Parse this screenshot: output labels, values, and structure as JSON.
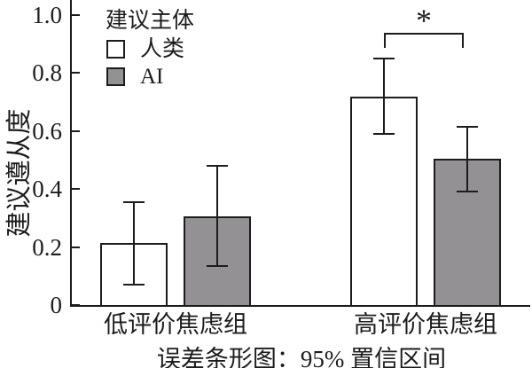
{
  "chart_data": {
    "type": "bar",
    "title": "",
    "ylabel": "建议遵从度",
    "xlabel": "",
    "caption": "误差条形图：95% 置信区间",
    "legend_title": "建议主体",
    "legend_position": "top-left-inside",
    "categories": [
      "低评价焦虑组",
      "高评价焦虑组"
    ],
    "series": [
      {
        "name": "人类",
        "fill": "#ffffff",
        "values": [
          0.215,
          0.72
        ],
        "ci_low": [
          0.07,
          0.59
        ],
        "ci_high": [
          0.355,
          0.85
        ]
      },
      {
        "name": "AI",
        "fill": "#949195",
        "values": [
          0.305,
          0.505
        ],
        "ci_low": [
          0.135,
          0.39
        ],
        "ci_high": [
          0.48,
          0.615
        ]
      }
    ],
    "yticks": [
      0,
      0.2,
      0.4,
      0.6,
      0.8,
      1.0
    ],
    "ytick_labels": [
      "0",
      "0.2",
      "0.4",
      "0.6",
      "0.8",
      "1.0"
    ],
    "ylim": [
      0,
      1.06
    ],
    "grid": false,
    "error_bars": "95% confidence interval",
    "significance": {
      "label": "*",
      "category": "高评价焦虑组",
      "between": [
        "人类",
        "AI"
      ]
    }
  },
  "colors": {
    "line": "#1c1c1c",
    "text": "#1c1c1c",
    "background": "#ffffff",
    "human_bar_fill": "#ffffff",
    "ai_bar_fill": "#949195"
  }
}
